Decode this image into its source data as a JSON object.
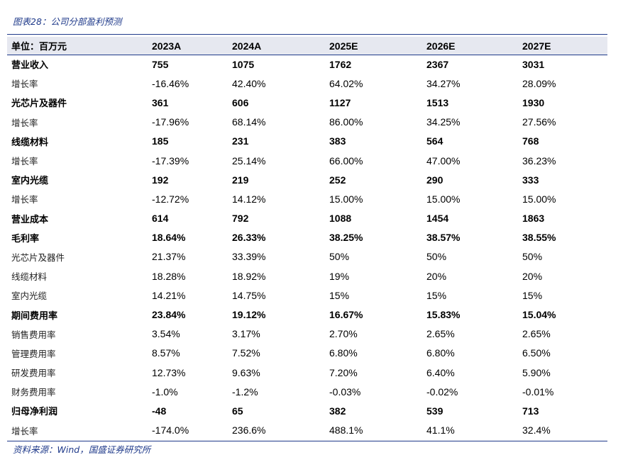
{
  "caption": "图表28：公司分部盈利预测",
  "source": "资料来源：Wind，国盛证券研究所",
  "header": [
    "单位：百万元",
    "2023A",
    "2024A",
    "2025E",
    "2026E",
    "2027E"
  ],
  "rows": [
    {
      "label": "营业收入",
      "bold": true,
      "values": [
        "755",
        "1075",
        "1762",
        "2367",
        "3031"
      ]
    },
    {
      "label": "增长率",
      "bold": false,
      "values": [
        "-16.46%",
        "42.40%",
        "64.02%",
        "34.27%",
        "28.09%"
      ]
    },
    {
      "label": "光芯片及器件",
      "bold": true,
      "values": [
        "361",
        "606",
        "1127",
        "1513",
        "1930"
      ]
    },
    {
      "label": "增长率",
      "bold": false,
      "values": [
        "-17.96%",
        "68.14%",
        "86.00%",
        "34.25%",
        "27.56%"
      ]
    },
    {
      "label": "线缆材料",
      "bold": true,
      "values": [
        "185",
        "231",
        "383",
        "564",
        "768"
      ]
    },
    {
      "label": "增长率",
      "bold": false,
      "values": [
        "-17.39%",
        "25.14%",
        "66.00%",
        "47.00%",
        "36.23%"
      ]
    },
    {
      "label": "室内光缆",
      "bold": true,
      "values": [
        "192",
        "219",
        "252",
        "290",
        "333"
      ]
    },
    {
      "label": "增长率",
      "bold": false,
      "values": [
        "-12.72%",
        "14.12%",
        "15.00%",
        "15.00%",
        "15.00%"
      ]
    },
    {
      "label": "营业成本",
      "bold": true,
      "values": [
        "614",
        "792",
        "1088",
        "1454",
        "1863"
      ]
    },
    {
      "label": "毛利率",
      "bold": true,
      "values": [
        "18.64%",
        "26.33%",
        "38.25%",
        "38.57%",
        "38.55%"
      ]
    },
    {
      "label": "光芯片及器件",
      "bold": false,
      "values": [
        "21.37%",
        "33.39%",
        "50%",
        "50%",
        "50%"
      ]
    },
    {
      "label": "线缆材料",
      "bold": false,
      "values": [
        "18.28%",
        "18.92%",
        "19%",
        "20%",
        "20%"
      ]
    },
    {
      "label": "室内光缆",
      "bold": false,
      "values": [
        "14.21%",
        "14.75%",
        "15%",
        "15%",
        "15%"
      ]
    },
    {
      "label": "期间费用率",
      "bold": true,
      "values": [
        "23.84%",
        "19.12%",
        "16.67%",
        "15.83%",
        "15.04%"
      ]
    },
    {
      "label": "销售费用率",
      "bold": false,
      "values": [
        "3.54%",
        "3.17%",
        "2.70%",
        "2.65%",
        "2.65%"
      ]
    },
    {
      "label": "管理费用率",
      "bold": false,
      "values": [
        "8.57%",
        "7.52%",
        "6.80%",
        "6.80%",
        "6.50%"
      ]
    },
    {
      "label": "研发费用率",
      "bold": false,
      "values": [
        "12.73%",
        "9.63%",
        "7.20%",
        "6.40%",
        "5.90%"
      ]
    },
    {
      "label": "财务费用率",
      "bold": false,
      "values": [
        "-1.0%",
        "-1.2%",
        "-0.03%",
        "-0.02%",
        "-0.01%"
      ]
    },
    {
      "label": "归母净利润",
      "bold": true,
      "values": [
        "-48",
        "65",
        "382",
        "539",
        "713"
      ]
    },
    {
      "label": "增长率",
      "bold": false,
      "values": [
        "-174.0%",
        "236.6%",
        "488.1%",
        "41.1%",
        "32.4%"
      ]
    }
  ]
}
